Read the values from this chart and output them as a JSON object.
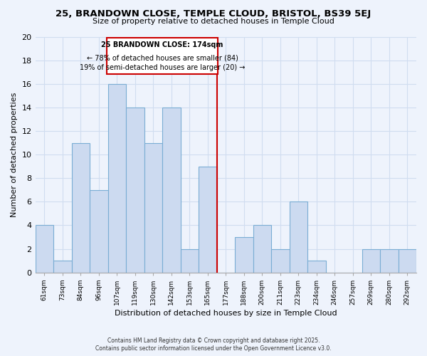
{
  "title": "25, BRANDOWN CLOSE, TEMPLE CLOUD, BRISTOL, BS39 5EJ",
  "subtitle": "Size of property relative to detached houses in Temple Cloud",
  "xlabel": "Distribution of detached houses by size in Temple Cloud",
  "ylabel": "Number of detached properties",
  "bin_labels": [
    "61sqm",
    "73sqm",
    "84sqm",
    "96sqm",
    "107sqm",
    "119sqm",
    "130sqm",
    "142sqm",
    "153sqm",
    "165sqm",
    "177sqm",
    "188sqm",
    "200sqm",
    "211sqm",
    "223sqm",
    "234sqm",
    "246sqm",
    "257sqm",
    "269sqm",
    "280sqm",
    "292sqm"
  ],
  "bar_values": [
    4,
    1,
    11,
    7,
    16,
    14,
    11,
    14,
    2,
    9,
    0,
    3,
    4,
    2,
    6,
    1,
    0,
    0,
    2,
    2,
    2
  ],
  "bar_color": "#ccdaf0",
  "bar_edge_color": "#7aadd4",
  "grid_color": "#d0ddf0",
  "reference_line_x": 10.0,
  "annotation_title": "25 BRANDOWN CLOSE: 174sqm",
  "annotation_line1": "← 78% of detached houses are smaller (84)",
  "annotation_line2": "19% of semi-detached houses are larger (20) →",
  "annotation_box_edge": "#cc0000",
  "reference_line_color": "#cc0000",
  "ylim": [
    0,
    20
  ],
  "yticks": [
    0,
    2,
    4,
    6,
    8,
    10,
    12,
    14,
    16,
    18,
    20
  ],
  "footer_line1": "Contains HM Land Registry data © Crown copyright and database right 2025.",
  "footer_line2": "Contains public sector information licensed under the Open Government Licence v3.0.",
  "background_color": "#eef3fc",
  "title_fontsize": 9.5,
  "subtitle_fontsize": 8.0
}
